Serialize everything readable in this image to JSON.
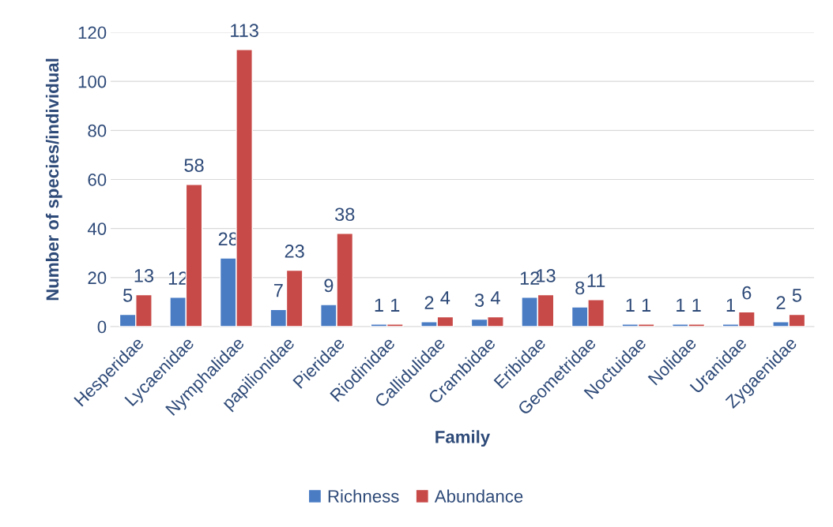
{
  "chart_data": {
    "type": "bar",
    "xlabel": "Family",
    "ylabel": "Number of species/individual",
    "categories": [
      "Hesperidae",
      "Lycaenidae",
      "Nymphalidae",
      "papilionidae",
      "Pieridae",
      "Riodinidae",
      "Callidulidae",
      "Crambidae",
      "Eribidae",
      "Geometridae",
      "Noctuidae",
      "Nolidae",
      "Uranidae",
      "Zygaenidae"
    ],
    "series": [
      {
        "name": "Richness",
        "color": "#4a7cc4",
        "values": [
          5,
          12,
          28,
          7,
          9,
          1,
          2,
          3,
          12,
          8,
          1,
          1,
          1,
          2
        ]
      },
      {
        "name": "Abundance",
        "color": "#c84a48",
        "values": [
          13,
          58,
          113,
          23,
          38,
          1,
          4,
          4,
          13,
          11,
          1,
          1,
          6,
          5
        ]
      }
    ],
    "ylim": [
      0,
      120
    ],
    "yticks": [
      0,
      20,
      40,
      60,
      80,
      100,
      120
    ],
    "grid": "y",
    "legend": "bottom",
    "data_labels": true
  }
}
